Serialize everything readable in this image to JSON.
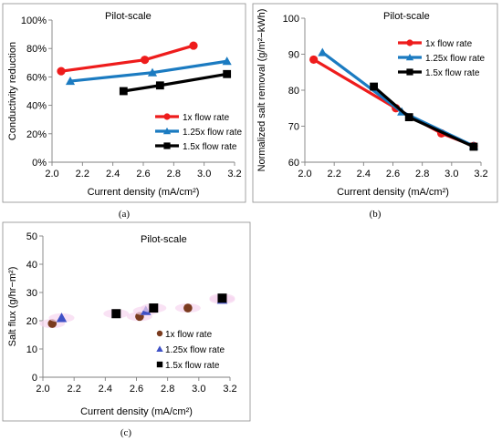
{
  "captions": [
    "(a)",
    "(b)",
    "(c)"
  ],
  "chart_data": [
    {
      "type": "line",
      "title": "Pilot-scale",
      "xlabel": "Current density (mA/cm²)",
      "ylabel": "Conductivity reduction",
      "xlim": [
        2.0,
        3.2
      ],
      "ylim": [
        0,
        100
      ],
      "x_ticks": [
        "2.0",
        "2.2",
        "2.4",
        "2.6",
        "2.8",
        "3.0",
        "3.2"
      ],
      "y_ticks": [
        "0%",
        "20%",
        "40%",
        "60%",
        "80%",
        "100%"
      ],
      "legend_position": "bottom-right",
      "series": [
        {
          "name": "1x flow rate",
          "color": "#ee1c1c",
          "marker": "circle",
          "x": [
            2.06,
            2.61,
            2.93
          ],
          "y": [
            64,
            72,
            82
          ]
        },
        {
          "name": "1.25x flow rate",
          "color": "#1b7bc1",
          "marker": "triangle",
          "x": [
            2.12,
            2.66,
            3.15
          ],
          "y": [
            57,
            63,
            71
          ]
        },
        {
          "name": "1.5x flow rate",
          "color": "#000000",
          "marker": "square",
          "x": [
            2.47,
            2.71,
            3.15
          ],
          "y": [
            50,
            54,
            62
          ]
        }
      ]
    },
    {
      "type": "line",
      "title": "Pilot-scale",
      "xlabel": "Current density (mA/cm²)",
      "ylabel": "Normalized salt removal (g/m²−kWh)",
      "xlim": [
        2.0,
        3.2
      ],
      "ylim": [
        60,
        100
      ],
      "x_ticks": [
        "2.0",
        "2.2",
        "2.4",
        "2.6",
        "2.8",
        "3.0",
        "3.2"
      ],
      "y_ticks": [
        "60",
        "70",
        "80",
        "90",
        "100"
      ],
      "legend_position": "top-right",
      "series": [
        {
          "name": "1x flow rate",
          "color": "#ee1c1c",
          "marker": "circle",
          "x": [
            2.06,
            2.62,
            2.93,
            3.15
          ],
          "y": [
            88.5,
            75,
            68,
            64.5
          ]
        },
        {
          "name": "1.25x flow rate",
          "color": "#1b7bc1",
          "marker": "triangle",
          "x": [
            2.12,
            2.66,
            3.15
          ],
          "y": [
            90.5,
            74,
            64.5
          ]
        },
        {
          "name": "1.5x flow rate",
          "color": "#000000",
          "marker": "square",
          "x": [
            2.47,
            2.71,
            3.15
          ],
          "y": [
            81,
            72.5,
            64.3
          ]
        }
      ]
    },
    {
      "type": "scatter",
      "title": "Pilot-scale",
      "xlabel": "Current density (mA/cm²)",
      "ylabel": "Salt flux (g/hr−m²)",
      "xlim": [
        2.0,
        3.2
      ],
      "ylim": [
        0,
        50
      ],
      "x_ticks": [
        "2.0",
        "2.2",
        "2.4",
        "2.6",
        "2.8",
        "3.0",
        "3.2"
      ],
      "y_ticks": [
        "0",
        "10",
        "20",
        "30",
        "40",
        "50"
      ],
      "legend_position": "bottom-right",
      "series": [
        {
          "name": "1x flow rate",
          "color": "#7a3b1e",
          "marker": "circle",
          "x": [
            2.06,
            2.62,
            2.93
          ],
          "y": [
            19,
            21.5,
            24.5
          ]
        },
        {
          "name": "1.25x flow rate",
          "color": "#3f51c6",
          "marker": "triangle",
          "x": [
            2.12,
            2.66,
            3.15
          ],
          "y": [
            21,
            23.5,
            27.5
          ]
        },
        {
          "name": "1.5x flow rate",
          "color": "#000000",
          "marker": "square",
          "x": [
            2.47,
            2.71,
            3.15
          ],
          "y": [
            22.5,
            24.5,
            28
          ]
        }
      ]
    }
  ]
}
